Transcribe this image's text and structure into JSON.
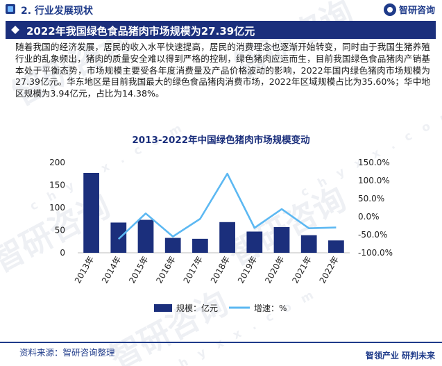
{
  "header": {
    "section_title": "2. 行业发展现状",
    "logo_text": "智研咨询"
  },
  "title_bar": {
    "title": "2022年我国绿色食品猪肉市场规模为27.39亿元"
  },
  "body_text": "随着我国的经济发展，居民的收入水平快速提高，居民的消费理念也逐渐开始转变，同时由于我国生猪养殖行业的乱象频出，猪肉的质量安全难以得到严格的控制，绿色猪肉应运而生，目前我国绿色食品猪肉产销基本处于平衡态势，市场规模主要受各年度消费量及产品价格波动的影响，2022年国内绿色猪肉市场规模为27.39亿元。华东地区是目前我国最大的绿色食品猪肉消费市场，2022年区域规模占比为35.60%；华中地区规模为3.94亿元，占比为14.38%。",
  "chart_data": {
    "type": "bar+line",
    "title": "2013-2022年中国绿色猪肉市场规模变动",
    "categories": [
      "2013年",
      "2014年",
      "2015年",
      "2016年",
      "2017年",
      "2018年",
      "2019年",
      "2020年",
      "2021年",
      "2022年"
    ],
    "left_axis": {
      "ticks": [
        "0",
        "50",
        "100",
        "150",
        "200"
      ],
      "ylim": [
        0,
        200
      ]
    },
    "right_axis": {
      "ticks": [
        "-100.0%",
        "-50.0%",
        "0.0%",
        "50.0%",
        "100.0%",
        "150.0%"
      ],
      "ylim": [
        -100,
        150
      ]
    },
    "series": [
      {
        "name": "规模：亿元",
        "kind": "bar",
        "axis": "left",
        "color": "#1b2f7c",
        "values": [
          177,
          67,
          73,
          33,
          31,
          68,
          47,
          57,
          39,
          27.39
        ]
      },
      {
        "name": "增速：%",
        "kind": "line",
        "axis": "right",
        "color": "#5cb8f2",
        "values": [
          null,
          -62,
          9,
          -55,
          -6,
          119,
          -31,
          21,
          -32,
          -30
        ]
      }
    ],
    "legend_position": "bottom"
  },
  "footer": {
    "source": "资料来源：智研咨询整理",
    "logo_text": "智领产业 研判未来"
  },
  "colors": {
    "primary": "#1b2f7c",
    "accent": "#5cb8f2"
  }
}
